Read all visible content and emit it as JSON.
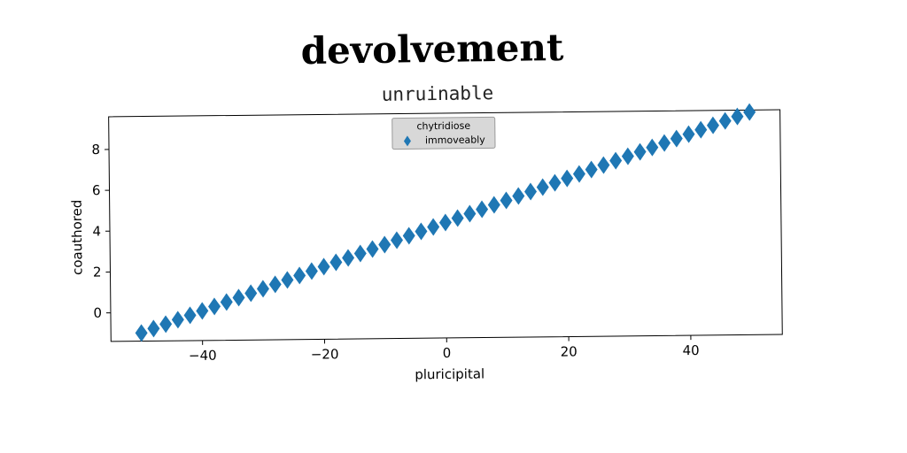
{
  "chart_data": {
    "type": "scatter",
    "title": "devolvement",
    "subtitle": "unruinable",
    "xlabel": "pluricipital",
    "ylabel": "coauthored",
    "xlim": [
      -55,
      55
    ],
    "ylim": [
      -1.4,
      9.6
    ],
    "xticks": [
      -40,
      -20,
      0,
      20,
      40
    ],
    "xtick_labels": [
      "−40",
      "−20",
      "0",
      "20",
      "40"
    ],
    "yticks": [
      0,
      2,
      4,
      6,
      8
    ],
    "ytick_labels": [
      "0",
      "2",
      "4",
      "6",
      "8"
    ],
    "grid": false,
    "legend": {
      "title": "chytridiose",
      "entries": [
        "immoveably"
      ],
      "placement": "upper-center"
    },
    "series": [
      {
        "name": "immoveably",
        "marker": "diamond",
        "color": "#1f77b4",
        "x_start": -50,
        "x_end": 50,
        "x_step": 2,
        "y_start": -1.0,
        "y_end": 9.5
      }
    ]
  }
}
